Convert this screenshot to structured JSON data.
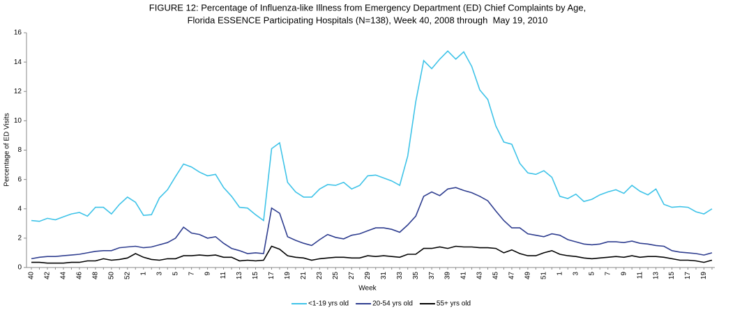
{
  "chart_data": {
    "type": "line",
    "title": [
      "FIGURE 12: Percentage of Influenza-like Illness from Emergency Department (ED) Chief Complaints by Age,",
      "Florida ESSENCE Participating Hospitals (N=138), Week 40, 2008 through  May 19, 2010"
    ],
    "x_label": "Week",
    "y_label": "Percentage of ED Visits",
    "categories": [
      "40",
      null,
      "42",
      null,
      "44",
      null,
      "46",
      null,
      "48",
      null,
      "50",
      null,
      "52",
      null,
      "1",
      null,
      "3",
      null,
      "5",
      null,
      "7",
      null,
      "9",
      null,
      "11",
      null,
      "13",
      null,
      "15",
      null,
      "17",
      null,
      "19",
      null,
      "21",
      null,
      "23",
      null,
      "25",
      null,
      "27",
      null,
      "29",
      null,
      "31",
      null,
      "33",
      null,
      "35",
      null,
      "37",
      null,
      "39",
      null,
      "41",
      null,
      "43",
      null,
      "45",
      null,
      "47",
      null,
      "49",
      null,
      "51",
      null,
      "1",
      null,
      "3",
      null,
      "5",
      null,
      "7",
      null,
      "9",
      null,
      "11",
      null,
      "13",
      null,
      "15",
      null,
      "17",
      null,
      "19",
      null
    ],
    "series": [
      {
        "name": "<1-19 yrs old",
        "color": "#3ec3e8",
        "values": [
          3.2,
          3.15,
          3.35,
          3.25,
          3.45,
          3.65,
          3.75,
          3.5,
          4.1,
          4.1,
          3.65,
          4.3,
          4.8,
          4.45,
          3.55,
          3.6,
          4.75,
          5.3,
          6.2,
          7.05,
          6.85,
          6.5,
          6.25,
          6.35,
          5.45,
          4.85,
          4.1,
          4.05,
          3.6,
          3.2,
          8.1,
          8.5,
          5.8,
          5.15,
          4.8,
          4.8,
          5.35,
          5.65,
          5.6,
          5.8,
          5.35,
          5.6,
          6.25,
          6.3,
          6.1,
          5.9,
          5.6,
          7.6,
          11.3,
          14.1,
          13.55,
          14.2,
          14.75,
          14.2,
          14.7,
          13.7,
          12.1,
          11.45,
          9.65,
          8.55,
          8.4,
          7.1,
          6.45,
          6.35,
          6.6,
          6.15,
          4.85,
          4.7,
          5.0,
          4.5,
          4.65,
          4.95,
          5.15,
          5.3,
          5.05,
          5.6,
          5.2,
          4.95,
          5.35,
          4.3,
          4.1,
          4.15,
          4.1,
          3.8,
          3.65,
          4.0
        ]
      },
      {
        "name": "20-54 yrs old",
        "color": "#2e3d8f",
        "values": [
          0.6,
          0.7,
          0.75,
          0.75,
          0.8,
          0.85,
          0.9,
          1.0,
          1.1,
          1.15,
          1.15,
          1.35,
          1.4,
          1.45,
          1.35,
          1.4,
          1.55,
          1.7,
          2.0,
          2.75,
          2.35,
          2.25,
          2.0,
          2.1,
          1.65,
          1.3,
          1.15,
          0.95,
          1.0,
          0.95,
          4.05,
          3.7,
          2.1,
          1.85,
          1.65,
          1.5,
          1.9,
          2.25,
          2.05,
          1.95,
          2.2,
          2.3,
          2.5,
          2.7,
          2.7,
          2.6,
          2.4,
          2.9,
          3.5,
          4.85,
          5.15,
          4.9,
          5.35,
          5.45,
          5.25,
          5.1,
          4.85,
          4.55,
          3.85,
          3.2,
          2.7,
          2.7,
          2.3,
          2.2,
          2.1,
          2.3,
          2.2,
          1.9,
          1.75,
          1.6,
          1.55,
          1.6,
          1.75,
          1.75,
          1.7,
          1.8,
          1.65,
          1.6,
          1.5,
          1.45,
          1.15,
          1.05,
          1.0,
          0.95,
          0.85,
          1.0
        ]
      },
      {
        "name": "55+ yrs old",
        "color": "#000000",
        "values": [
          0.35,
          0.35,
          0.3,
          0.3,
          0.3,
          0.35,
          0.35,
          0.45,
          0.45,
          0.6,
          0.5,
          0.55,
          0.65,
          0.95,
          0.7,
          0.55,
          0.5,
          0.6,
          0.6,
          0.8,
          0.8,
          0.85,
          0.8,
          0.85,
          0.7,
          0.7,
          0.45,
          0.5,
          0.45,
          0.5,
          1.45,
          1.25,
          0.8,
          0.7,
          0.65,
          0.5,
          0.6,
          0.65,
          0.7,
          0.7,
          0.65,
          0.65,
          0.8,
          0.75,
          0.8,
          0.75,
          0.7,
          0.9,
          0.9,
          1.3,
          1.3,
          1.4,
          1.3,
          1.45,
          1.4,
          1.4,
          1.35,
          1.35,
          1.3,
          1.0,
          1.2,
          0.95,
          0.8,
          0.8,
          1.0,
          1.15,
          0.9,
          0.8,
          0.75,
          0.65,
          0.6,
          0.65,
          0.7,
          0.75,
          0.7,
          0.8,
          0.7,
          0.75,
          0.75,
          0.7,
          0.6,
          0.5,
          0.5,
          0.45,
          0.35,
          0.5
        ]
      }
    ],
    "ylim": [
      0,
      16
    ],
    "yticks": [
      0,
      2,
      4,
      6,
      8,
      10,
      12,
      14,
      16
    ],
    "grid": false,
    "legend": "bottom"
  }
}
